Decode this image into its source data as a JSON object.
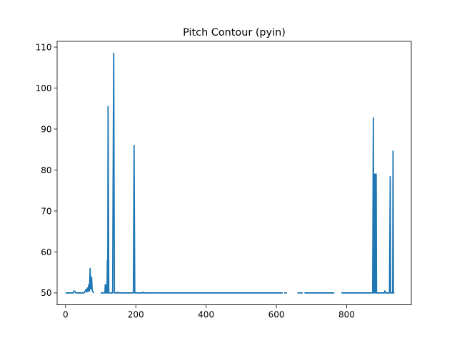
{
  "chart_data": {
    "type": "line",
    "title": "Pitch Contour (pyin)",
    "xlabel": "",
    "ylabel": "",
    "xlim": [
      -24,
      984
    ],
    "ylim": [
      47.1,
      111.4
    ],
    "x_ticks": [
      0,
      200,
      400,
      600,
      800
    ],
    "y_ticks": [
      50,
      60,
      70,
      80,
      90,
      100,
      110
    ],
    "grid": false,
    "legend": "none",
    "line_color": "#1f77b4",
    "series": [
      {
        "segments": [
          [
            [
              0,
              50
            ],
            [
              22,
              50
            ],
            [
              24,
              50.5
            ],
            [
              27,
              50.3
            ],
            [
              29,
              50
            ],
            [
              52,
              50
            ],
            [
              55,
              50.3
            ],
            [
              58,
              50.8
            ],
            [
              60,
              50.2
            ],
            [
              62,
              51.2
            ],
            [
              64,
              50.3
            ],
            [
              66,
              52
            ],
            [
              68,
              50.5
            ],
            [
              70,
              56
            ],
            [
              72,
              51
            ],
            [
              74,
              53.8
            ],
            [
              76,
              50.5
            ],
            [
              78,
              50.3
            ],
            [
              80,
              50
            ]
          ],
          [
            [
              100,
              50
            ],
            [
              112,
              50
            ],
            [
              113,
              52
            ],
            [
              115,
              50
            ],
            [
              117,
              52
            ],
            [
              118,
              50
            ],
            [
              119,
              58
            ],
            [
              120,
              50
            ],
            [
              121,
              95.5
            ],
            [
              123,
              50
            ],
            [
              134,
              50
            ],
            [
              135,
              70
            ],
            [
              137,
              108.5
            ],
            [
              139,
              50
            ],
            [
              147,
              50
            ],
            [
              149,
              50.2
            ],
            [
              151,
              50
            ],
            [
              193,
              50
            ],
            [
              195,
              86
            ],
            [
              197,
              50
            ],
            [
              218,
              50
            ],
            [
              220,
              50.2
            ],
            [
              222,
              50
            ],
            [
              256,
              50
            ],
            [
              258,
              50.1
            ],
            [
              260,
              50
            ],
            [
              618,
              50
            ]
          ],
          [
            [
              622,
              50
            ],
            [
              630,
              50
            ]
          ],
          [
            [
              660,
              50
            ],
            [
              675,
              50
            ]
          ],
          [
            [
              680,
              50
            ],
            [
              765,
              50
            ]
          ],
          [
            [
              785,
              50
            ],
            [
              874,
              50
            ],
            [
              876,
              92.7
            ],
            [
              877,
              50
            ],
            [
              879,
              79
            ],
            [
              880,
              50
            ],
            [
              882,
              79
            ],
            [
              883,
              50
            ],
            [
              884,
              79
            ],
            [
              885,
              50
            ],
            [
              907,
              50
            ],
            [
              909,
              50.5
            ],
            [
              911,
              50
            ],
            [
              922,
              50
            ],
            [
              924,
              78.4
            ],
            [
              925,
              50
            ],
            [
              931,
              50
            ],
            [
              932,
              84.6
            ],
            [
              933,
              50
            ],
            [
              936,
              50
            ]
          ]
        ]
      }
    ]
  }
}
